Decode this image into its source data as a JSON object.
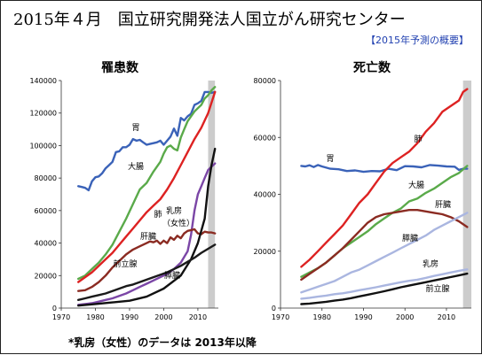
{
  "header": {
    "title": "2015年４月　国立研究開発法人国立がん研究センター",
    "subtitle": "【2015年予測の概要】"
  },
  "footnote": "*乳房（女性）のデータは 2013年以降",
  "colors": {
    "stomach": "#3a62b8",
    "colorectum": "#5aaa4a",
    "lung": "#dd2222",
    "breast": "#7b46a6",
    "liver": "#8b2b22",
    "prostate": "#111111",
    "pancreas": "#1a1a1a",
    "pancreas_death": "#aab6e0",
    "breast_death": "#aab6e0",
    "projection_band": "#cccccc"
  },
  "chart_data": [
    {
      "type": "line",
      "title": "罹患数",
      "xlabel": "",
      "ylabel": "",
      "xlim": [
        1970,
        2016
      ],
      "ylim": [
        0,
        140000
      ],
      "xticks": [
        1970,
        1980,
        1990,
        2000,
        2010
      ],
      "yticks": [
        0,
        20000,
        40000,
        60000,
        80000,
        100000,
        120000,
        140000
      ],
      "tick_labels_x": [
        "1970",
        "1980",
        "1990",
        "2000",
        "2010"
      ],
      "tick_labels_y": [
        "0",
        "20000",
        "40000",
        "60000",
        "80000",
        "100000",
        "120000",
        "140000"
      ],
      "grid": false,
      "projection_band": [
        2013,
        2015
      ],
      "series": [
        {
          "name": "胃",
          "key": "stomach",
          "x": [
            1975,
            1976,
            1977,
            1978,
            1979,
            1980,
            1981,
            1982,
            1983,
            1984,
            1985,
            1986,
            1987,
            1988,
            1989,
            1990,
            1991,
            1992,
            1993,
            1994,
            1995,
            1996,
            1997,
            1998,
            1999,
            2000,
            2001,
            2002,
            2003,
            2004,
            2005,
            2006,
            2007,
            2008,
            2009,
            2010,
            2011,
            2012,
            2013,
            2014,
            2015
          ],
          "y": [
            75000,
            74500,
            74000,
            72500,
            78000,
            80500,
            81000,
            83000,
            86000,
            88000,
            90000,
            96000,
            96500,
            99000,
            99000,
            100500,
            104000,
            103000,
            103500,
            102000,
            100500,
            101000,
            101500,
            102000,
            103000,
            100500,
            103000,
            105500,
            110500,
            106000,
            117000,
            115500,
            118000,
            119500,
            125000,
            126000,
            127500,
            133000,
            133000,
            132500,
            133000
          ]
        },
        {
          "name": "大腸",
          "key": "colorectum",
          "x": [
            1975,
            1977,
            1979,
            1981,
            1983,
            1985,
            1987,
            1989,
            1991,
            1993,
            1995,
            1997,
            1999,
            2000,
            2001,
            2002,
            2003,
            2004,
            2005,
            2006,
            2007,
            2008,
            2009,
            2010,
            2011,
            2012,
            2013,
            2014,
            2015
          ],
          "y": [
            18000,
            20000,
            24000,
            28000,
            33000,
            39000,
            47000,
            55000,
            64000,
            73000,
            77000,
            84000,
            90000,
            95000,
            99000,
            100000,
            98000,
            97000,
            105000,
            110000,
            115000,
            118000,
            121000,
            123000,
            125000,
            129000,
            131000,
            134000,
            136000
          ]
        },
        {
          "name": "肺",
          "key": "lung",
          "x": [
            1975,
            1977,
            1979,
            1981,
            1983,
            1985,
            1987,
            1989,
            1991,
            1993,
            1995,
            1997,
            1999,
            2001,
            2003,
            2005,
            2007,
            2009,
            2011,
            2013,
            2015
          ],
          "y": [
            16000,
            19000,
            22000,
            26000,
            30000,
            34000,
            39000,
            44000,
            49000,
            54000,
            59000,
            63000,
            67000,
            73000,
            80000,
            88000,
            96000,
            104000,
            111000,
            120000,
            133000
          ]
        },
        {
          "name": "乳房（女性）",
          "key": "breast",
          "x": [
            1975,
            1977,
            1979,
            1981,
            1983,
            1985,
            1987,
            1989,
            1991,
            1993,
            1995,
            1997,
            1999,
            2001,
            2003,
            2005,
            2007,
            2008,
            2009,
            2010,
            2011,
            2012,
            2013,
            2014,
            2015
          ],
          "y": [
            2000,
            2500,
            3000,
            4000,
            5000,
            6000,
            7500,
            9000,
            11000,
            13000,
            15000,
            17000,
            19000,
            21000,
            24000,
            28000,
            35000,
            45000,
            60000,
            70000,
            75000,
            80000,
            85000,
            87000,
            89000
          ]
        },
        {
          "name": "肝臓",
          "key": "liver",
          "x": [
            1975,
            1977,
            1979,
            1981,
            1983,
            1985,
            1987,
            1989,
            1991,
            1993,
            1995,
            1996,
            1997,
            1998,
            1999,
            2000,
            2001,
            2002,
            2003,
            2004,
            2005,
            2006,
            2007,
            2008,
            2009,
            2010,
            2011,
            2012,
            2013,
            2014,
            2015
          ],
          "y": [
            10500,
            11000,
            13000,
            16000,
            20000,
            25000,
            29000,
            33000,
            36000,
            38000,
            40000,
            41000,
            40500,
            41500,
            39500,
            41500,
            40000,
            43500,
            42000,
            44500,
            43000,
            46000,
            47500,
            48000,
            48500,
            46000,
            45500,
            47000,
            46500,
            46500,
            46000
          ]
        },
        {
          "name": "前立腺",
          "key": "prostate",
          "x": [
            1975,
            1980,
            1985,
            1990,
            1995,
            2000,
            2005,
            2008,
            2010,
            2012,
            2013,
            2014,
            2015
          ],
          "y": [
            1500,
            2500,
            3500,
            4500,
            7000,
            12000,
            20000,
            30000,
            40000,
            55000,
            75000,
            88000,
            98000
          ]
        },
        {
          "name": "膵臓",
          "key": "pancreas",
          "x": [
            1975,
            1977,
            1979,
            1981,
            1983,
            1985,
            1987,
            1989,
            1991,
            1993,
            1995,
            1997,
            1999,
            2001,
            2003,
            2005,
            2007,
            2009,
            2011,
            2013,
            2015
          ],
          "y": [
            5000,
            6000,
            7000,
            8000,
            9000,
            10500,
            12000,
            13500,
            14500,
            16000,
            17500,
            19000,
            20500,
            22000,
            24000,
            26000,
            28500,
            31000,
            34000,
            36500,
            39000
          ]
        }
      ],
      "labels": [
        {
          "text": "胃",
          "key": "stomach"
        },
        {
          "text": "大腸",
          "key": "colorectum"
        },
        {
          "text": "肺",
          "key": "lung"
        },
        {
          "text": "乳房",
          "key": "breast"
        },
        {
          "text": "（女性）",
          "key": "breast2"
        },
        {
          "text": "肝臓",
          "key": "liver"
        },
        {
          "text": "前立腺",
          "key": "prostate"
        },
        {
          "text": "膵臓",
          "key": "pancreas"
        }
      ]
    },
    {
      "type": "line",
      "title": "死亡数",
      "xlabel": "",
      "ylabel": "",
      "xlim": [
        1970,
        2016
      ],
      "ylim": [
        0,
        80000
      ],
      "xticks": [
        1970,
        1980,
        1990,
        2000,
        2010
      ],
      "yticks": [
        0,
        20000,
        40000,
        60000,
        80000
      ],
      "tick_labels_x": [
        "1970",
        "1980",
        "1990",
        "2000",
        "2010"
      ],
      "tick_labels_y": [
        "0",
        "20000",
        "40000",
        "60000",
        "80000"
      ],
      "grid": false,
      "projection_band": [
        2014,
        2016
      ],
      "series": [
        {
          "name": "胃",
          "key": "stomach",
          "x": [
            1975,
            1976,
            1977,
            1978,
            1979,
            1980,
            1982,
            1984,
            1986,
            1988,
            1990,
            1992,
            1994,
            1996,
            1998,
            2000,
            2002,
            2004,
            2006,
            2008,
            2010,
            2012,
            2013,
            2014,
            2015
          ],
          "y": [
            50000,
            49800,
            50200,
            49600,
            50300,
            49800,
            49000,
            48800,
            48200,
            48400,
            47900,
            48200,
            48100,
            49000,
            48500,
            49900,
            49800,
            49500,
            50300,
            50100,
            49800,
            49700,
            48600,
            49000,
            49000
          ]
        },
        {
          "name": "肺",
          "key": "lung",
          "x": [
            1975,
            1977,
            1979,
            1981,
            1983,
            1985,
            1987,
            1989,
            1991,
            1993,
            1995,
            1997,
            1999,
            2001,
            2003,
            2005,
            2007,
            2009,
            2011,
            2013,
            2014,
            2015
          ],
          "y": [
            14500,
            17000,
            20000,
            23000,
            26000,
            29000,
            33000,
            37000,
            40000,
            44000,
            48000,
            51000,
            53000,
            55000,
            58000,
            62000,
            65000,
            69000,
            71000,
            73000,
            76000,
            77000
          ]
        },
        {
          "name": "大腸",
          "key": "colorectum",
          "x": [
            1975,
            1977,
            1979,
            1981,
            1983,
            1985,
            1987,
            1989,
            1991,
            1993,
            1995,
            1997,
            1999,
            2001,
            2003,
            2005,
            2007,
            2009,
            2011,
            2013,
            2015
          ],
          "y": [
            11000,
            12500,
            14000,
            16000,
            18500,
            21000,
            23000,
            25000,
            27000,
            29500,
            31500,
            33500,
            35000,
            37500,
            38500,
            40500,
            42000,
            44000,
            46000,
            47500,
            50000
          ]
        },
        {
          "name": "肝臓",
          "key": "liver",
          "x": [
            1975,
            1977,
            1979,
            1981,
            1983,
            1985,
            1987,
            1989,
            1991,
            1993,
            1995,
            1997,
            1999,
            2001,
            2003,
            2005,
            2007,
            2009,
            2011,
            2013,
            2015
          ],
          "y": [
            10000,
            12000,
            14000,
            16000,
            18500,
            21000,
            24000,
            27000,
            30000,
            32000,
            33000,
            33500,
            34000,
            34500,
            34500,
            34000,
            33500,
            33000,
            32000,
            30500,
            28500
          ]
        },
        {
          "name": "膵臓",
          "key": "pancreas_death",
          "x": [
            1975,
            1977,
            1979,
            1981,
            1983,
            1985,
            1987,
            1989,
            1991,
            1993,
            1995,
            1997,
            1999,
            2001,
            2003,
            2005,
            2007,
            2009,
            2011,
            2013,
            2015
          ],
          "y": [
            5500,
            6500,
            7500,
            8500,
            9500,
            11000,
            12500,
            13500,
            15000,
            16500,
            18000,
            19500,
            21000,
            22500,
            24000,
            25500,
            27500,
            29000,
            30500,
            32000,
            33500
          ]
        },
        {
          "name": "乳房",
          "key": "breast_death",
          "x": [
            1975,
            1977,
            1979,
            1981,
            1983,
            1985,
            1987,
            1989,
            1991,
            1993,
            1995,
            1997,
            1999,
            2001,
            2003,
            2005,
            2007,
            2009,
            2011,
            2013,
            2015
          ],
          "y": [
            3300,
            3600,
            4000,
            4400,
            4900,
            5200,
            5700,
            6300,
            6800,
            7300,
            7900,
            8500,
            9100,
            9600,
            10000,
            10600,
            11300,
            11900,
            12500,
            13100,
            13600
          ]
        },
        {
          "name": "前立腺",
          "key": "prostate",
          "x": [
            1975,
            1977,
            1979,
            1981,
            1983,
            1985,
            1987,
            1989,
            1991,
            1993,
            1995,
            1997,
            1999,
            2001,
            2003,
            2005,
            2007,
            2009,
            2011,
            2013,
            2015
          ],
          "y": [
            1400,
            1600,
            1900,
            2200,
            2600,
            3000,
            3500,
            4100,
            4700,
            5300,
            5900,
            6600,
            7300,
            7900,
            8500,
            9100,
            9700,
            10300,
            10900,
            11500,
            12100
          ]
        }
      ],
      "labels": [
        {
          "text": "胃",
          "key": "stomach"
        },
        {
          "text": "肺",
          "key": "lung"
        },
        {
          "text": "大腸",
          "key": "colorectum"
        },
        {
          "text": "肝臓",
          "key": "liver"
        },
        {
          "text": "膵臓",
          "key": "pancreas"
        },
        {
          "text": "乳房",
          "key": "breast"
        },
        {
          "text": "前立腺",
          "key": "prostate"
        }
      ]
    }
  ]
}
